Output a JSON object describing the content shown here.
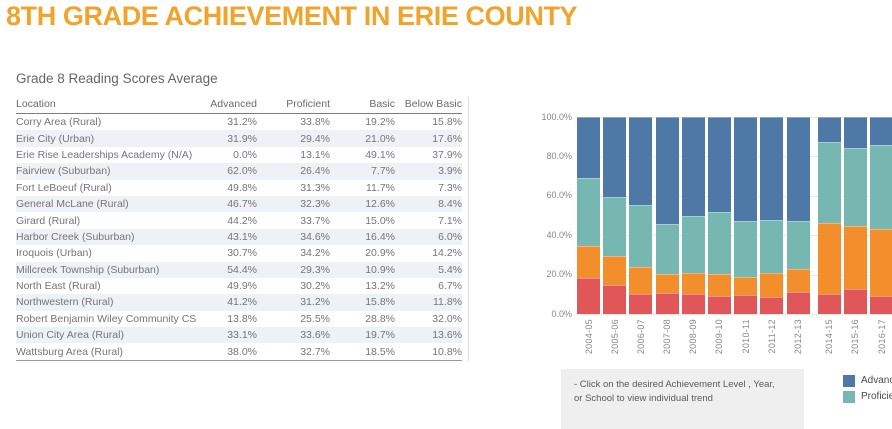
{
  "page": {
    "title": "8TH GRADE ACHIEVEMENT IN ERIE COUNTY",
    "accent_color": "#F0A42C"
  },
  "table": {
    "title": "Grade 8 Reading Scores Average",
    "columns": [
      "Location",
      "Advanced",
      "Proficient",
      "Basic",
      "Below Basic"
    ],
    "rows": [
      {
        "location": "Corry Area (Rural)",
        "advanced": "31.2%",
        "proficient": "33.8%",
        "basic": "19.2%",
        "below_basic": "15.8%"
      },
      {
        "location": "Erie City (Urban)",
        "advanced": "31.9%",
        "proficient": "29.4%",
        "basic": "21.0%",
        "below_basic": "17.6%"
      },
      {
        "location": "Erie Rise Leaderships Academy (N/A)",
        "advanced": "0.0%",
        "proficient": "13.1%",
        "basic": "49.1%",
        "below_basic": "37.9%"
      },
      {
        "location": "Fairview (Suburban)",
        "advanced": "62.0%",
        "proficient": "26.4%",
        "basic": "7.7%",
        "below_basic": "3.9%"
      },
      {
        "location": "Fort LeBoeuf (Rural)",
        "advanced": "49.8%",
        "proficient": "31.3%",
        "basic": "11.7%",
        "below_basic": "7.3%"
      },
      {
        "location": "General McLane (Rural)",
        "advanced": "46.7%",
        "proficient": "32.3%",
        "basic": "12.6%",
        "below_basic": "8.4%"
      },
      {
        "location": "Girard (Rural)",
        "advanced": "44.2%",
        "proficient": "33.7%",
        "basic": "15.0%",
        "below_basic": "7.1%"
      },
      {
        "location": "Harbor Creek (Suburban)",
        "advanced": "43.1%",
        "proficient": "34.6%",
        "basic": "16.4%",
        "below_basic": "6.0%"
      },
      {
        "location": "Iroquois (Urban)",
        "advanced": "30.7%",
        "proficient": "34.2%",
        "basic": "20.9%",
        "below_basic": "14.2%"
      },
      {
        "location": "Millcreek Township (Suburban)",
        "advanced": "54.4%",
        "proficient": "29.3%",
        "basic": "10.9%",
        "below_basic": "5.4%"
      },
      {
        "location": "North East (Rural)",
        "advanced": "49.9%",
        "proficient": "30.2%",
        "basic": "13.2%",
        "below_basic": "6.7%"
      },
      {
        "location": "Northwestern (Rural)",
        "advanced": "41.2%",
        "proficient": "31.2%",
        "basic": "15.8%",
        "below_basic": "11.8%"
      },
      {
        "location": "Robert Benjamin Wiley Community CS",
        "advanced": "13.8%",
        "proficient": "25.5%",
        "basic": "28.8%",
        "below_basic": "32.0%"
      },
      {
        "location": "Union City Area (Rural)",
        "advanced": "33.1%",
        "proficient": "33.6%",
        "basic": "19.7%",
        "below_basic": "13.6%"
      },
      {
        "location": "Wattsburg Area (Rural)",
        "advanced": "38.0%",
        "proficient": "32.7%",
        "basic": "18.5%",
        "below_basic": "10.8%"
      }
    ]
  },
  "chart_data": {
    "type": "bar",
    "stacked": true,
    "categories": [
      "2004-05",
      "2005-06",
      "2006-07",
      "2007-08",
      "2008-09",
      "2009-10",
      "2010-11",
      "2011-12",
      "2012-13",
      "2014-15",
      "2015-16",
      "2016-17"
    ],
    "gap_before_category": "2014-15",
    "series": [
      {
        "name": "Below Basic",
        "color": "#e15759",
        "values": [
          18.3,
          14.5,
          10.4,
          10.7,
          10.0,
          9.3,
          9.5,
          8.7,
          11.2,
          10.0,
          12.9,
          9.2
        ]
      },
      {
        "name": "Basic",
        "color": "#f28e2b",
        "values": [
          16.1,
          15.2,
          13.7,
          9.4,
          10.8,
          11.2,
          9.3,
          11.9,
          11.4,
          36.2,
          31.8,
          34.2
        ]
      },
      {
        "name": "Proficient",
        "color": "#76b7b2",
        "values": [
          34.4,
          29.8,
          31.2,
          25.6,
          28.8,
          31.5,
          28.3,
          27.0,
          24.4,
          41.0,
          39.5,
          42.5
        ]
      },
      {
        "name": "Advanced",
        "color": "#4e79a7",
        "values": [
          31.2,
          40.5,
          44.7,
          54.3,
          50.4,
          48.0,
          52.9,
          52.4,
          53.0,
          12.8,
          15.8,
          14.1
        ]
      }
    ],
    "y_ticks": [
      {
        "label": "100.0%",
        "value": 100
      },
      {
        "label": "80.0%",
        "value": 80
      },
      {
        "label": "60.0%",
        "value": 60
      },
      {
        "label": "40.0%",
        "value": 40
      },
      {
        "label": "20.0%",
        "value": 20
      },
      {
        "label": "0.0%",
        "value": 0
      }
    ],
    "ylim": [
      0,
      100
    ],
    "grid": true,
    "legend_position": "bottom-right",
    "legend_visible_items": [
      "Advanced",
      "Proficient"
    ]
  },
  "note": {
    "line1": "- Click on the desired Achievement Level , Year,",
    "line2": "or School to view individual trend"
  },
  "legend": {
    "items": [
      {
        "label": "Advanced",
        "color": "#4e79a7"
      },
      {
        "label": "Proficient",
        "color": "#76b7b2"
      }
    ]
  }
}
